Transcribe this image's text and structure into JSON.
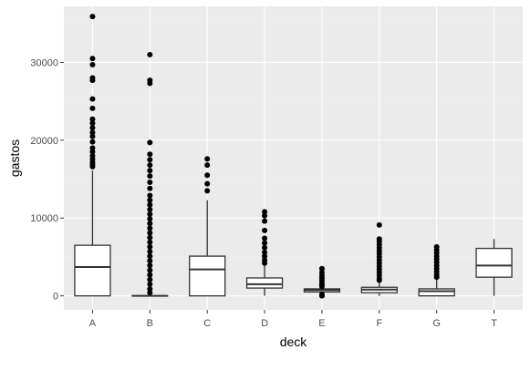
{
  "chart_data": {
    "type": "boxplot",
    "xlabel": "deck",
    "ylabel": "gastos",
    "categories": [
      "A",
      "B",
      "C",
      "D",
      "E",
      "F",
      "G",
      "T"
    ],
    "ylim": [
      -1800,
      37200
    ],
    "yticks": [
      0,
      10000,
      20000,
      30000
    ],
    "ytick_labels": [
      "0",
      "10000",
      "20000",
      "30000"
    ],
    "grid": true,
    "legend": "none",
    "series": [
      {
        "category": "A",
        "lower_whisker": 0,
        "q1": 0,
        "median": 3700,
        "q3": 6500,
        "upper_whisker": 16100,
        "outliers": [
          35900,
          30500,
          29700,
          28000,
          27700,
          25300,
          24100,
          22700,
          22200,
          21600,
          21000,
          20500,
          19800,
          19000,
          18500,
          18000,
          17600,
          17200,
          16900,
          16600
        ]
      },
      {
        "category": "B",
        "lower_whisker": 0,
        "q1": 0,
        "median": 0,
        "q3": 0,
        "upper_whisker": 0,
        "outliers": [
          31000,
          27700,
          27300,
          19700,
          18200,
          17500,
          16800,
          16100,
          15400,
          14600,
          13800,
          12900,
          12300,
          11700,
          11100,
          10500,
          9900,
          9300,
          8700,
          8100,
          7500,
          6900,
          6300,
          5700,
          5100,
          4500,
          3900,
          3300,
          2700,
          2100,
          1500,
          900,
          400
        ]
      },
      {
        "category": "C",
        "lower_whisker": 0,
        "q1": 0,
        "median": 3400,
        "q3": 5100,
        "upper_whisker": 12300,
        "outliers": [
          17600,
          16800,
          15500,
          14400,
          13500
        ]
      },
      {
        "category": "D",
        "lower_whisker": 0,
        "q1": 1000,
        "median": 1500,
        "q3": 2300,
        "upper_whisker": 3900,
        "outliers": [
          10800,
          10300,
          9600,
          8400,
          7400,
          6800,
          6200,
          5600,
          5100,
          4600,
          4200
        ]
      },
      {
        "category": "E",
        "lower_whisker": 0,
        "q1": 500,
        "median": 750,
        "q3": 900,
        "upper_whisker": 1000,
        "outliers": [
          3500,
          3000,
          2600,
          2300,
          2000,
          1700,
          1400,
          1200,
          200,
          0
        ]
      },
      {
        "category": "F",
        "lower_whisker": 0,
        "q1": 400,
        "median": 800,
        "q3": 1100,
        "upper_whisker": 1800,
        "outliers": [
          9100,
          7300,
          7000,
          6600,
          6200,
          5800,
          5400,
          5000,
          4600,
          4200,
          3800,
          3400,
          3000,
          2600,
          2200,
          2000
        ]
      },
      {
        "category": "G",
        "lower_whisker": 0,
        "q1": 0,
        "median": 600,
        "q3": 900,
        "upper_whisker": 2100,
        "outliers": [
          6300,
          5900,
          5500,
          5100,
          4700,
          4300,
          3900,
          3500,
          3100,
          2700,
          2400
        ]
      },
      {
        "category": "T",
        "lower_whisker": 0,
        "q1": 2400,
        "median": 3900,
        "q3": 6100,
        "upper_whisker": 7300,
        "outliers": []
      }
    ]
  },
  "colors": {
    "panel_background": "#ebebeb",
    "grid_major": "#ffffff",
    "grid_minor": "#f2f2f2",
    "box_fill": "#ffffff",
    "box_stroke": "#333333",
    "outlier": "#000000",
    "tick_text": "#4d4d4d",
    "axis_title": "#000000"
  }
}
